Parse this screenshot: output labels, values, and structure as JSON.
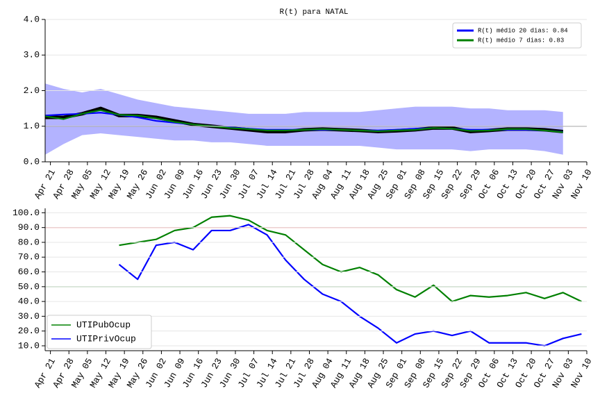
{
  "chart_data": [
    {
      "type": "line",
      "title": "R(t) para NATAL",
      "x": [
        "Apr 19",
        "Apr 26",
        "May 03",
        "May 10",
        "May 17",
        "May 24",
        "May 31",
        "Jun 07",
        "Jun 14",
        "Jun 21",
        "Jun 28",
        "Jul 05",
        "Jul 12",
        "Jul 19",
        "Jul 26",
        "Aug 02",
        "Aug 09",
        "Aug 16",
        "Aug 23",
        "Aug 30",
        "Sep 06",
        "Sep 13",
        "Sep 20",
        "Sep 27",
        "Oct 04",
        "Oct 11",
        "Oct 18",
        "Oct 25",
        "Nov 01"
      ],
      "band": {
        "color": "#b3b3ff",
        "upper": [
          2.2,
          2.05,
          1.95,
          2.05,
          1.9,
          1.75,
          1.65,
          1.55,
          1.5,
          1.45,
          1.4,
          1.35,
          1.35,
          1.35,
          1.4,
          1.4,
          1.4,
          1.4,
          1.45,
          1.5,
          1.55,
          1.55,
          1.55,
          1.5,
          1.5,
          1.45,
          1.45,
          1.45,
          1.4
        ],
        "lower": [
          0.2,
          0.5,
          0.75,
          0.8,
          0.75,
          0.7,
          0.65,
          0.6,
          0.6,
          0.55,
          0.55,
          0.5,
          0.45,
          0.45,
          0.45,
          0.45,
          0.45,
          0.45,
          0.4,
          0.35,
          0.35,
          0.35,
          0.35,
          0.3,
          0.35,
          0.35,
          0.35,
          0.3,
          0.2
        ]
      },
      "series": [
        {
          "color": "#000000",
          "values": [
            1.25,
            1.25,
            1.35,
            1.5,
            1.3,
            1.3,
            1.25,
            1.15,
            1.05,
            1.0,
            0.95,
            0.9,
            0.85,
            0.85,
            0.9,
            0.92,
            0.9,
            0.88,
            0.85,
            0.87,
            0.9,
            0.95,
            0.95,
            0.85,
            0.88,
            0.92,
            0.92,
            0.9,
            0.85
          ]
        },
        {
          "name": "R(t) médio 20 dias: 0.84",
          "color": "#0000ff",
          "values": [
            1.3,
            1.33,
            1.35,
            1.38,
            1.32,
            1.25,
            1.15,
            1.1,
            1.05,
            1.0,
            0.97,
            0.93,
            0.9,
            0.9,
            0.9,
            0.9,
            0.9,
            0.88,
            0.88,
            0.9,
            0.93,
            0.95,
            0.93,
            0.9,
            0.9,
            0.9,
            0.9,
            0.88,
            0.84
          ]
        },
        {
          "name": "R(t) médio 7 dias: 0.83",
          "color": "#008000",
          "values": [
            1.28,
            1.2,
            1.35,
            1.45,
            1.32,
            1.3,
            1.22,
            1.12,
            1.05,
            1.0,
            0.95,
            0.92,
            0.88,
            0.88,
            0.9,
            0.92,
            0.9,
            0.88,
            0.86,
            0.88,
            0.9,
            0.95,
            0.93,
            0.87,
            0.88,
            0.92,
            0.92,
            0.88,
            0.83
          ]
        }
      ],
      "hlines": [
        {
          "value": 1.0,
          "color": "#000000"
        }
      ],
      "xlim": [
        "Apr 19",
        "Nov 10"
      ],
      "xticks": [
        "Apr 21",
        "Apr 28",
        "May 05",
        "May 12",
        "May 19",
        "May 26",
        "Jun 02",
        "Jun 09",
        "Jun 16",
        "Jun 23",
        "Jun 30",
        "Jul 07",
        "Jul 14",
        "Jul 21",
        "Jul 28",
        "Aug 04",
        "Aug 11",
        "Aug 18",
        "Aug 25",
        "Sep 01",
        "Sep 08",
        "Sep 15",
        "Sep 22",
        "Sep 29",
        "Oct 06",
        "Oct 13",
        "Oct 20",
        "Oct 27",
        "Nov 03",
        "Nov 10"
      ],
      "ylim": [
        0,
        4
      ],
      "yticks": [
        {
          "value": 0,
          "label": "0.0"
        },
        {
          "value": 1,
          "label": "1.0"
        },
        {
          "value": 2,
          "label": "2.0"
        },
        {
          "value": 3,
          "label": "3.0"
        },
        {
          "value": 4,
          "label": "4.0"
        }
      ],
      "grid": true,
      "legend": "upper right"
    },
    {
      "type": "line",
      "x": [
        "May 17",
        "May 24",
        "May 31",
        "Jun 07",
        "Jun 14",
        "Jun 21",
        "Jun 28",
        "Jul 05",
        "Jul 12",
        "Jul 19",
        "Jul 26",
        "Aug 02",
        "Aug 09",
        "Aug 16",
        "Aug 23",
        "Aug 30",
        "Sep 06",
        "Sep 13",
        "Sep 20",
        "Sep 27",
        "Oct 04",
        "Oct 11",
        "Oct 18",
        "Oct 25",
        "Nov 01",
        "Nov 08"
      ],
      "series": [
        {
          "name": "UTIPubOcup",
          "color": "#008000",
          "values": [
            78,
            80,
            82,
            88,
            90,
            97,
            98,
            95,
            88,
            85,
            75,
            65,
            60,
            63,
            58,
            48,
            43,
            51,
            40,
            44,
            43,
            44,
            46,
            42,
            46,
            40
          ]
        },
        {
          "name": "UTIPrivOcup",
          "color": "#0000ff",
          "values": [
            65,
            55,
            78,
            80,
            75,
            88,
            88,
            92,
            85,
            68,
            55,
            45,
            40,
            30,
            22,
            12,
            18,
            20,
            17,
            20,
            12,
            12,
            12,
            10,
            15,
            18
          ]
        }
      ],
      "hlines": [
        {
          "value": 90,
          "color": "#ff0000"
        },
        {
          "value": 50,
          "color": "#008000"
        }
      ],
      "xlim": [
        "Apr 19",
        "Nov 10"
      ],
      "xticks": [
        "Apr 21",
        "Apr 28",
        "May 05",
        "May 12",
        "May 19",
        "May 26",
        "Jun 02",
        "Jun 09",
        "Jun 16",
        "Jun 23",
        "Jun 30",
        "Jul 07",
        "Jul 14",
        "Jul 21",
        "Jul 28",
        "Aug 04",
        "Aug 11",
        "Aug 18",
        "Aug 25",
        "Sep 01",
        "Sep 08",
        "Sep 15",
        "Sep 22",
        "Sep 29",
        "Oct 06",
        "Oct 13",
        "Oct 20",
        "Oct 27",
        "Nov 03",
        "Nov 10"
      ],
      "ylim": [
        6.7,
        103
      ],
      "yticks": [
        {
          "value": 10,
          "label": "10.0"
        },
        {
          "value": 20,
          "label": "20.0"
        },
        {
          "value": 30,
          "label": "30.0"
        },
        {
          "value": 40,
          "label": "40.0"
        },
        {
          "value": 50,
          "label": "50.0"
        },
        {
          "value": 60,
          "label": "60.0"
        },
        {
          "value": 70,
          "label": "70.0"
        },
        {
          "value": 80,
          "label": "80.0"
        },
        {
          "value": 90,
          "label": "90.0"
        },
        {
          "value": 100,
          "label": "100.0"
        }
      ],
      "grid": true,
      "legend": "lower left"
    }
  ]
}
